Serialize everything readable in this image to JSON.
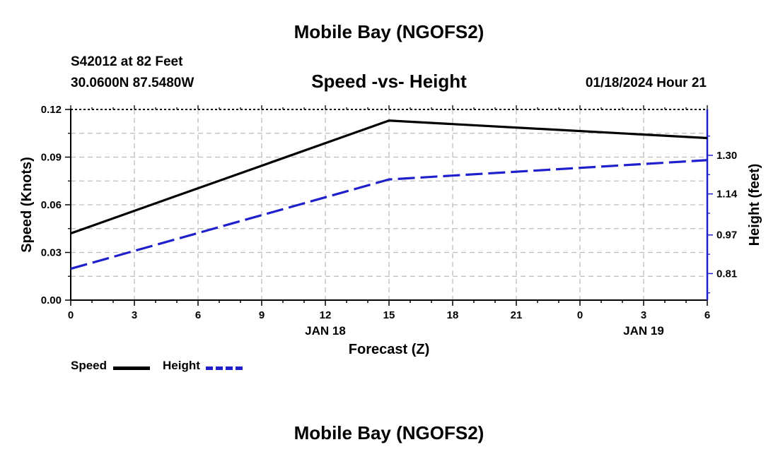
{
  "header": {
    "title": "Mobile Bay (NGOFS2)",
    "station": "S42012 at 82 Feet",
    "coords": "30.0600N  87.5480W",
    "subtitle": "Speed -vs- Height",
    "timestamp": "01/18/2024 Hour 21"
  },
  "footer": {
    "title": "Mobile Bay (NGOFS2)"
  },
  "legend": [
    {
      "label": "Speed",
      "color": "#000000",
      "dashed": false
    },
    {
      "label": "Height",
      "color": "#1f1fcc",
      "dashed": true
    }
  ],
  "chart_data": {
    "type": "line",
    "title": "Speed -vs- Height",
    "xlabel": "Forecast (Z)",
    "ylabel": "Speed (Knots)",
    "y2label": "Height (feet)",
    "x_ticks": [
      "0",
      "3",
      "6",
      "9",
      "12",
      "15",
      "18",
      "21",
      "0",
      "3",
      "6"
    ],
    "x_hours": [
      0,
      3,
      6,
      9,
      12,
      15,
      18,
      21,
      24,
      27,
      30
    ],
    "x_date_labels": [
      {
        "label": "JAN 18",
        "hour": 12
      },
      {
        "label": "JAN 19",
        "hour": 27
      }
    ],
    "xlim": [
      0,
      30
    ],
    "ylim": [
      0,
      0.12
    ],
    "y_ticks": [
      "0.00",
      "0.03",
      "0.06",
      "0.09",
      "0.12"
    ],
    "y2lim": [
      0.7,
      1.49
    ],
    "y2_ticks": [
      "0.81",
      "0.97",
      "1.14",
      "1.30"
    ],
    "grid": true,
    "legend_position": "bottom-left",
    "series": [
      {
        "name": "Speed",
        "axis": "left",
        "color": "#000000",
        "dashed": false,
        "x": [
          0,
          15,
          30
        ],
        "values": [
          0.042,
          0.113,
          0.102
        ]
      },
      {
        "name": "Height",
        "axis": "right",
        "color": "#1f1fcc",
        "dashed": true,
        "x": [
          0,
          15,
          30
        ],
        "values": [
          0.83,
          1.2,
          1.28
        ]
      }
    ]
  }
}
